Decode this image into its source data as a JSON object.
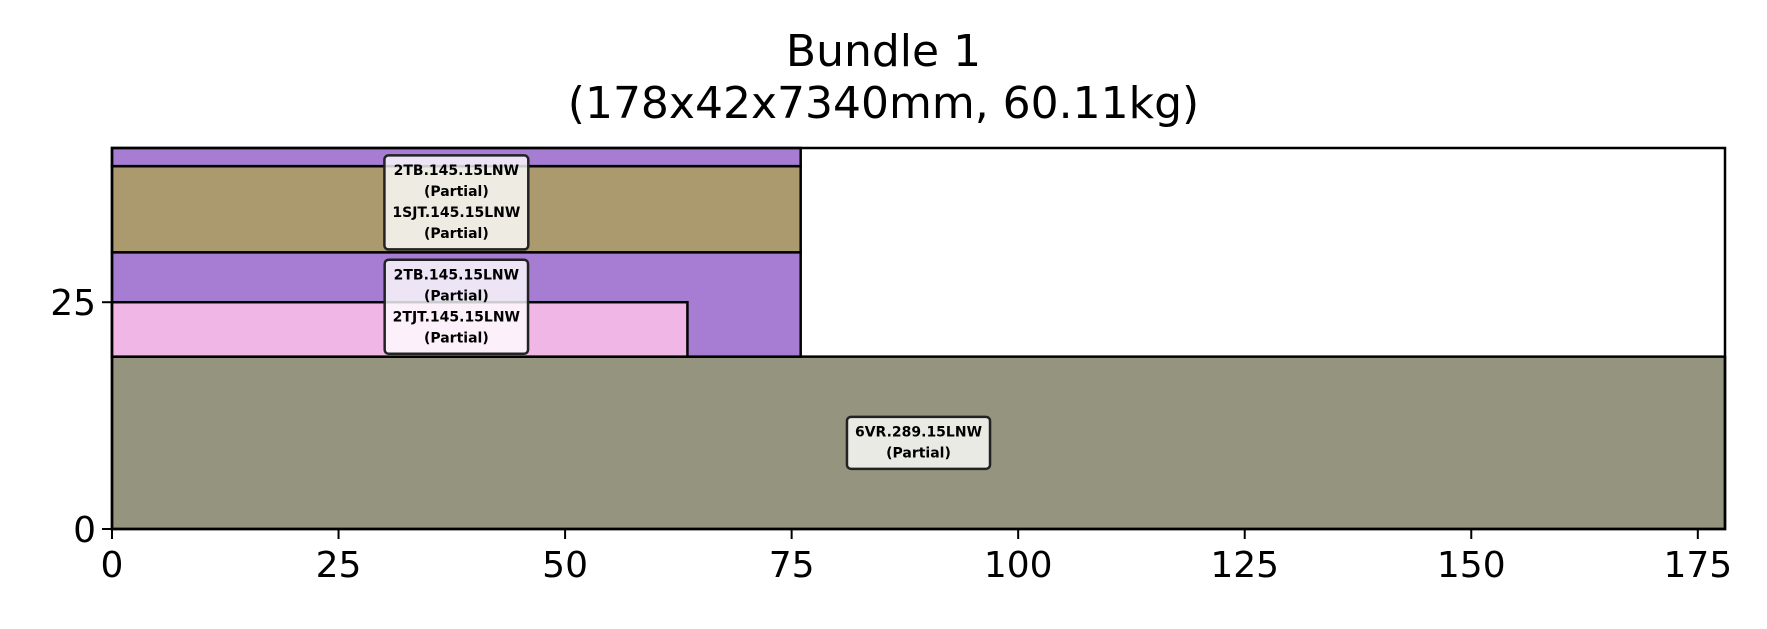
{
  "chart_data": {
    "type": "bar",
    "title": "Bundle 1",
    "subtitle": "(178x42x7340mm, 60.11kg)",
    "xlim": [
      0,
      178
    ],
    "ylim": [
      0,
      42
    ],
    "grid": false,
    "x_ticks": [
      "0",
      "25",
      "50",
      "75",
      "100",
      "125",
      "150",
      "175"
    ],
    "y_ticks": [
      "0",
      "25"
    ],
    "rectangles": [
      {
        "x0": 0,
        "x1": 178,
        "y0": 0,
        "y1": 19,
        "color": "#94947f",
        "label_index": 0
      },
      {
        "x0": 0,
        "x1": 76,
        "y0": 19,
        "y1": 30.5,
        "color": "#a77cd3",
        "label_index": null
      },
      {
        "x0": 0,
        "x1": 63.5,
        "y0": 19,
        "y1": 25,
        "color": "#f0b6e5",
        "label_index": null
      },
      {
        "x0": 0,
        "x1": 76,
        "y0": 30.5,
        "y1": 40,
        "color": "#ac9a6f",
        "label_index": null
      },
      {
        "x0": 0,
        "x1": 76,
        "y0": 40,
        "y1": 42,
        "color": "#a77cd3",
        "label_index": null
      }
    ],
    "labels": [
      {
        "lines": [
          "6VR.289.15LNW",
          "(Partial)"
        ],
        "x": 89,
        "y": 9.5
      },
      {
        "lines": [
          "2TB.145.15LNW",
          "(Partial)",
          "2TJT.145.15LNW",
          "(Partial)"
        ],
        "x": 38,
        "y": 24.5
      },
      {
        "lines": [
          "2TB.145.15LNW",
          "(Partial)",
          "1SJT.145.15LNW",
          "(Partial)"
        ],
        "x": 38,
        "y": 36
      }
    ]
  }
}
